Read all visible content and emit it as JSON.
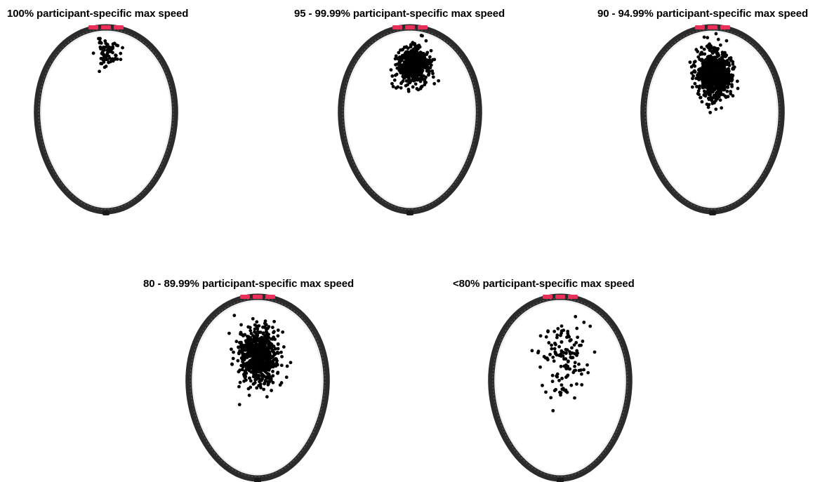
{
  "chart_data": [
    {
      "type": "scatter",
      "title": "100% participant-specific max speed",
      "center": [
        0.03,
        0.72
      ],
      "spread": [
        0.09,
        0.07
      ],
      "count": 70,
      "seed": 11,
      "point_color": "#000000"
    },
    {
      "type": "scatter",
      "title": "95 - 99.99% participant-specific max speed",
      "center": [
        0.04,
        0.58
      ],
      "spread": [
        0.11,
        0.1
      ],
      "count": 550,
      "seed": 23,
      "point_color": "#000000"
    },
    {
      "type": "scatter",
      "title": "90 - 94.99% participant-specific max speed",
      "center": [
        0.02,
        0.49
      ],
      "spread": [
        0.12,
        0.13
      ],
      "count": 800,
      "seed": 37,
      "point_color": "#000000"
    },
    {
      "type": "scatter",
      "title": "80 - 89.99% participant-specific max speed",
      "center": [
        0.02,
        0.35
      ],
      "spread": [
        0.14,
        0.16
      ],
      "count": 650,
      "seed": 41,
      "point_color": "#000000"
    },
    {
      "type": "scatter",
      "title": "<80% participant-specific max speed",
      "center": [
        0.05,
        0.32
      ],
      "spread": [
        0.17,
        0.2
      ],
      "count": 130,
      "seed": 53,
      "point_color": "#000000"
    }
  ],
  "colors": {
    "frame": "#2b2b2b",
    "frame_highlight": "#5a5a5a",
    "accent": "#e8305b",
    "background": "#ffffff"
  }
}
